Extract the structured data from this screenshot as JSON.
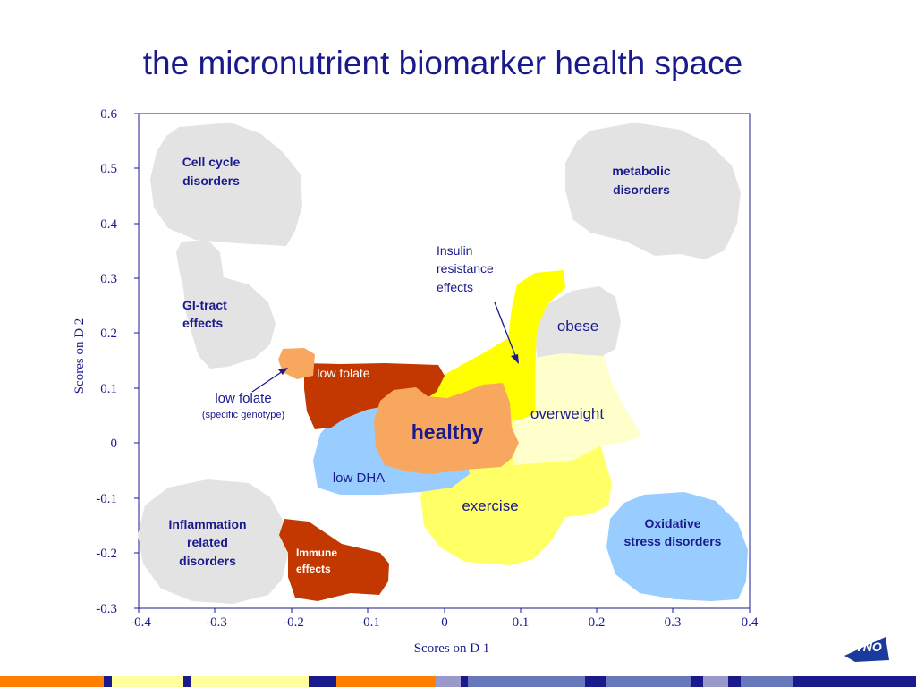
{
  "title": "the micronutrient biomarker health space",
  "axes": {
    "xlabel": "Scores on D 1",
    "ylabel": "Scores on D 2",
    "xticks": [
      "-0.4",
      "-0.3",
      "-0.2",
      "-0.1",
      "0",
      "0.1",
      "0.2",
      "0.3",
      "0.4"
    ],
    "yticks": [
      "0.6",
      "0.5",
      "0.4",
      "0.3",
      "0.2",
      "0.1",
      "0",
      "-0.1",
      "-0.2",
      "-0.3"
    ],
    "xlim": [
      -0.4,
      0.4
    ],
    "ylim": [
      -0.3,
      0.6
    ]
  },
  "regions": {
    "cell_cycle": [
      "Cell cycle",
      "disorders"
    ],
    "metabolic": [
      "metabolic",
      "disorders"
    ],
    "gi_tract": [
      "GI-tract",
      "effects"
    ],
    "insulin": [
      "Insulin",
      "resistance",
      "effects"
    ],
    "obese": "obese",
    "low_folate": "low folate",
    "low_folate_genotype": "low folate",
    "low_folate_genotype_sub": "(specific genotype)",
    "overweight": "overweight",
    "healthy": "healthy",
    "low_dha": "low DHA",
    "exercise": "exercise",
    "inflammation": [
      "Inflammation",
      "related",
      "disorders"
    ],
    "immune": [
      "Immune",
      "effects"
    ],
    "oxidative": [
      "Oxidative",
      "stress disorders"
    ]
  },
  "colors": {
    "grey": "#e3e3e3",
    "yellow": "#ffff00",
    "light_yellow": "#ffff99",
    "pale_yellow": "#ffffcc",
    "dark_orange": "#c23800",
    "light_orange": "#f7a85e",
    "light_blue": "#99ccff",
    "navy": "#1a1a8c"
  },
  "logo": "TNO"
}
